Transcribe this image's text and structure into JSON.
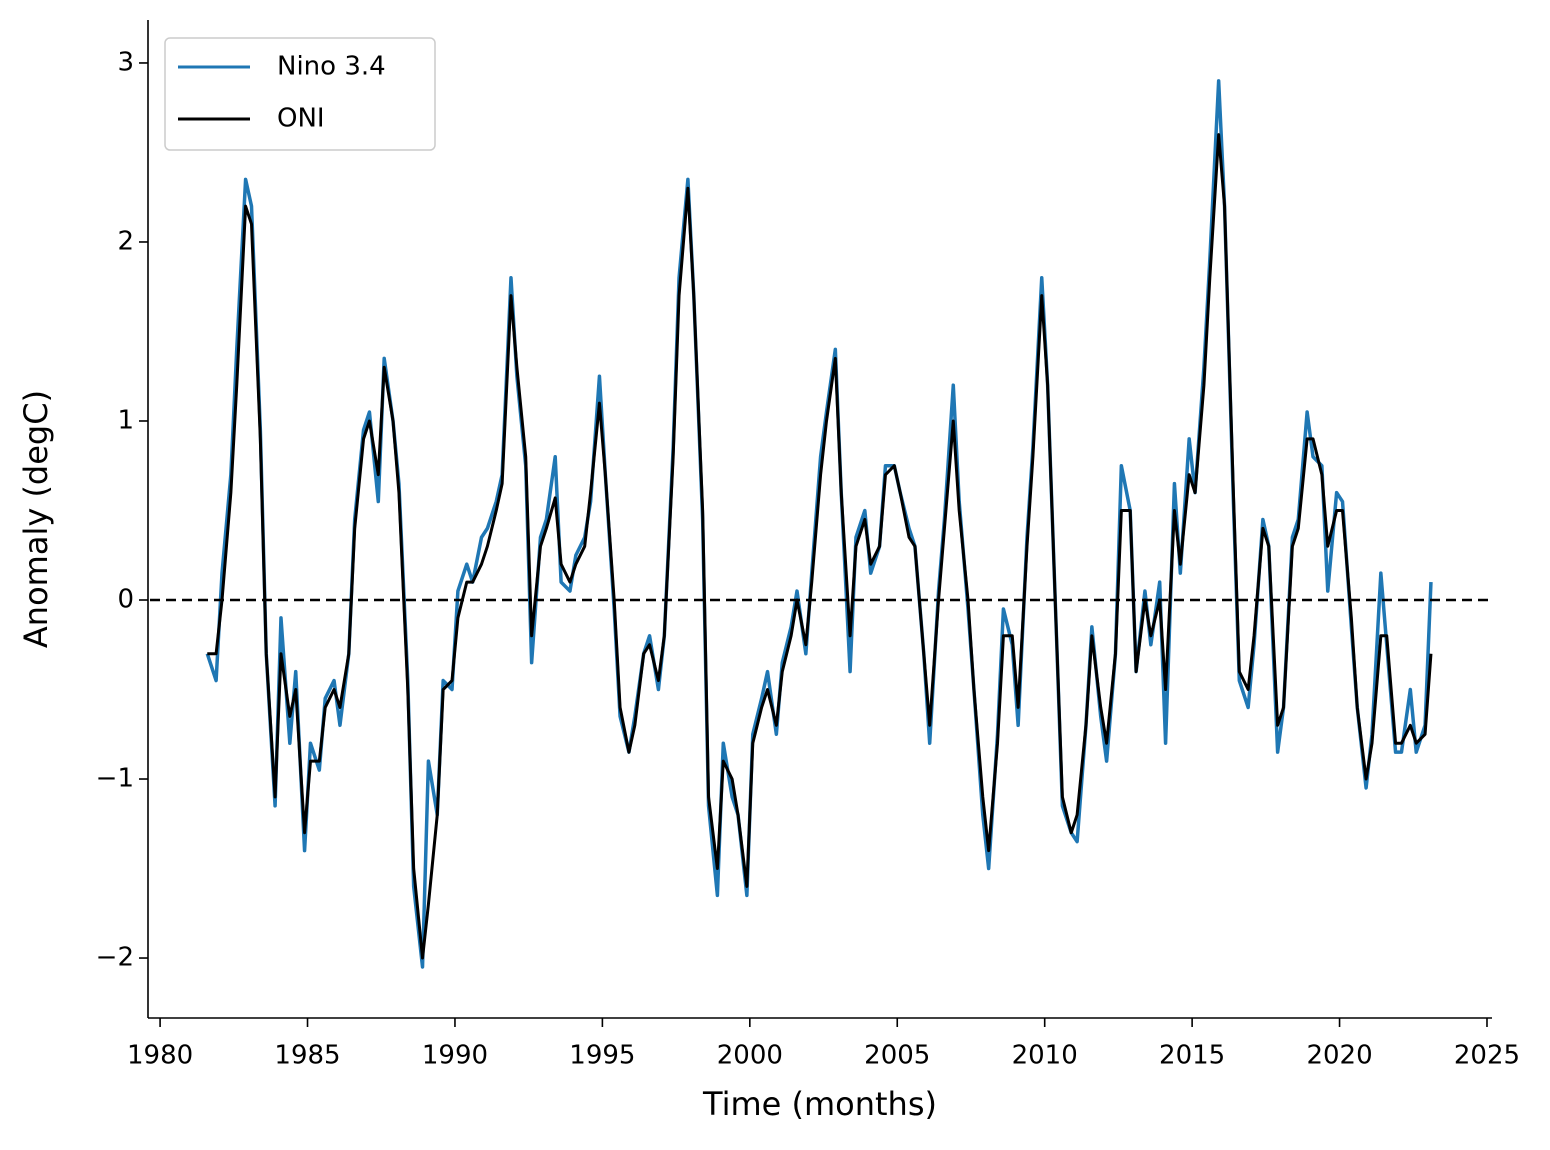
{
  "chart_data": {
    "type": "line",
    "xlabel": "Time (months)",
    "ylabel": "Anomaly (degC)",
    "xlim": [
      1979.59,
      2025.17
    ],
    "ylim": [
      -2.335,
      3.24
    ],
    "xticks": [
      1980,
      1985,
      1990,
      1995,
      2000,
      2005,
      2010,
      2015,
      2020,
      2025
    ],
    "yticks": [
      {
        "value": -2,
        "label": "−2"
      },
      {
        "value": -1,
        "label": "−1"
      },
      0,
      1,
      2,
      3
    ],
    "hline": 0,
    "legend": "upper left",
    "grid": false,
    "x": [
      1981.6,
      1981.9,
      1982.1,
      1982.4,
      1982.6,
      1982.9,
      1983.1,
      1983.4,
      1983.6,
      1983.9,
      1984.1,
      1984.4,
      1984.6,
      1984.9,
      1985.1,
      1985.4,
      1985.6,
      1985.9,
      1986.1,
      1986.4,
      1986.6,
      1986.9,
      1987.1,
      1987.4,
      1987.6,
      1987.9,
      1988.1,
      1988.4,
      1988.6,
      1988.9,
      1989.1,
      1989.4,
      1989.6,
      1989.9,
      1990.1,
      1990.4,
      1990.6,
      1990.9,
      1991.1,
      1991.4,
      1991.6,
      1991.9,
      1992.1,
      1992.4,
      1992.6,
      1992.9,
      1993.1,
      1993.4,
      1993.6,
      1993.9,
      1994.1,
      1994.4,
      1994.6,
      1994.9,
      1995.1,
      1995.4,
      1995.6,
      1995.9,
      1996.1,
      1996.4,
      1996.6,
      1996.9,
      1997.1,
      1997.4,
      1997.6,
      1997.9,
      1998.1,
      1998.4,
      1998.6,
      1998.9,
      1999.1,
      1999.4,
      1999.6,
      1999.9,
      2000.1,
      2000.4,
      2000.6,
      2000.9,
      2001.1,
      2001.4,
      2001.6,
      2001.9,
      2002.1,
      2002.4,
      2002.6,
      2002.9,
      2003.1,
      2003.4,
      2003.6,
      2003.9,
      2004.1,
      2004.4,
      2004.6,
      2004.9,
      2005.1,
      2005.4,
      2005.6,
      2005.9,
      2006.1,
      2006.4,
      2006.6,
      2006.9,
      2007.1,
      2007.4,
      2007.6,
      2007.9,
      2008.1,
      2008.4,
      2008.6,
      2008.9,
      2009.1,
      2009.4,
      2009.6,
      2009.9,
      2010.1,
      2010.4,
      2010.6,
      2010.9,
      2011.1,
      2011.4,
      2011.6,
      2011.9,
      2012.1,
      2012.4,
      2012.6,
      2012.9,
      2013.1,
      2013.4,
      2013.6,
      2013.9,
      2014.1,
      2014.4,
      2014.6,
      2014.9,
      2015.1,
      2015.4,
      2015.6,
      2015.9,
      2016.1,
      2016.4,
      2016.6,
      2016.9,
      2017.1,
      2017.4,
      2017.6,
      2017.9,
      2018.1,
      2018.4,
      2018.6,
      2018.9,
      2019.1,
      2019.4,
      2019.6,
      2019.9,
      2020.1,
      2020.4,
      2020.6,
      2020.9,
      2021.1,
      2021.4,
      2021.6,
      2021.9,
      2022.1,
      2022.4,
      2022.6,
      2022.9,
      2023.1
    ],
    "series": [
      {
        "name": "Nino 3.4",
        "color": "#1f77b4",
        "values": [
          -0.3,
          -0.45,
          0.15,
          0.7,
          1.4,
          2.35,
          2.2,
          0.95,
          -0.3,
          -1.15,
          -0.1,
          -0.8,
          -0.4,
          -1.4,
          -0.8,
          -0.95,
          -0.55,
          -0.45,
          -0.7,
          -0.3,
          0.45,
          0.95,
          1.05,
          0.55,
          1.35,
          1.0,
          0.65,
          -0.45,
          -1.6,
          -2.05,
          -0.9,
          -1.2,
          -0.45,
          -0.5,
          0.05,
          0.2,
          0.1,
          0.35,
          0.4,
          0.55,
          0.7,
          1.8,
          1.25,
          0.75,
          -0.35,
          0.35,
          0.45,
          0.8,
          0.1,
          0.05,
          0.25,
          0.35,
          0.55,
          1.25,
          0.7,
          -0.05,
          -0.65,
          -0.85,
          -0.65,
          -0.3,
          -0.2,
          -0.5,
          -0.2,
          0.85,
          1.8,
          2.35,
          1.7,
          0.45,
          -1.15,
          -1.65,
          -0.8,
          -1.1,
          -1.2,
          -1.65,
          -0.75,
          -0.55,
          -0.4,
          -0.75,
          -0.35,
          -0.15,
          0.05,
          -0.3,
          0.15,
          0.8,
          1.05,
          1.4,
          0.6,
          -0.4,
          0.35,
          0.5,
          0.15,
          0.3,
          0.75,
          0.75,
          0.6,
          0.4,
          0.3,
          -0.3,
          -0.8,
          0.05,
          0.45,
          1.2,
          0.55,
          -0.05,
          -0.5,
          -1.2,
          -1.5,
          -0.75,
          -0.05,
          -0.25,
          -0.7,
          0.35,
          0.85,
          1.8,
          1.2,
          -0.2,
          -1.15,
          -1.3,
          -1.35,
          -0.7,
          -0.15,
          -0.65,
          -0.9,
          -0.3,
          0.75,
          0.5,
          -0.4,
          0.05,
          -0.25,
          0.1,
          -0.8,
          0.65,
          0.15,
          0.9,
          0.6,
          1.3,
          1.9,
          2.9,
          2.2,
          0.55,
          -0.45,
          -0.6,
          -0.25,
          0.45,
          0.3,
          -0.85,
          -0.6,
          0.35,
          0.45,
          1.05,
          0.8,
          0.75,
          0.05,
          0.6,
          0.55,
          -0.15,
          -0.6,
          -1.05,
          -0.75,
          0.15,
          -0.25,
          -0.85,
          -0.85,
          -0.5,
          -0.85,
          -0.7,
          0.1
        ]
      },
      {
        "name": "ONI",
        "color": "#000000",
        "values": [
          -0.3,
          -0.3,
          0.0,
          0.6,
          1.2,
          2.2,
          2.1,
          0.9,
          -0.3,
          -1.1,
          -0.3,
          -0.65,
          -0.5,
          -1.3,
          -0.9,
          -0.9,
          -0.6,
          -0.5,
          -0.6,
          -0.3,
          0.4,
          0.9,
          1.0,
          0.7,
          1.3,
          1.0,
          0.6,
          -0.5,
          -1.5,
          -2.0,
          -1.7,
          -1.2,
          -0.5,
          -0.45,
          -0.1,
          0.1,
          0.1,
          0.2,
          0.3,
          0.5,
          0.65,
          1.7,
          1.3,
          0.8,
          -0.2,
          0.3,
          0.4,
          0.57,
          0.2,
          0.1,
          0.2,
          0.3,
          0.6,
          1.1,
          0.7,
          0.0,
          -0.6,
          -0.85,
          -0.7,
          -0.3,
          -0.25,
          -0.45,
          -0.2,
          0.8,
          1.7,
          2.3,
          1.7,
          0.5,
          -1.1,
          -1.5,
          -0.9,
          -1.0,
          -1.2,
          -1.6,
          -0.8,
          -0.6,
          -0.5,
          -0.7,
          -0.4,
          -0.2,
          0.0,
          -0.25,
          0.1,
          0.7,
          1.0,
          1.35,
          0.6,
          -0.2,
          0.3,
          0.45,
          0.2,
          0.3,
          0.7,
          0.75,
          0.6,
          0.35,
          0.3,
          -0.3,
          -0.7,
          0.0,
          0.4,
          1.0,
          0.5,
          0.0,
          -0.5,
          -1.1,
          -1.4,
          -0.8,
          -0.2,
          -0.2,
          -0.6,
          0.3,
          0.8,
          1.7,
          1.2,
          -0.2,
          -1.1,
          -1.3,
          -1.2,
          -0.7,
          -0.2,
          -0.6,
          -0.8,
          -0.3,
          0.5,
          0.5,
          -0.4,
          0.0,
          -0.2,
          0.0,
          -0.5,
          0.5,
          0.2,
          0.7,
          0.6,
          1.2,
          1.8,
          2.6,
          2.2,
          0.6,
          -0.4,
          -0.5,
          -0.2,
          0.4,
          0.3,
          -0.7,
          -0.6,
          0.3,
          0.4,
          0.9,
          0.9,
          0.7,
          0.3,
          0.5,
          0.5,
          -0.1,
          -0.6,
          -1.0,
          -0.8,
          -0.2,
          -0.2,
          -0.8,
          -0.8,
          -0.7,
          -0.8,
          -0.75,
          -0.3
        ]
      }
    ]
  }
}
